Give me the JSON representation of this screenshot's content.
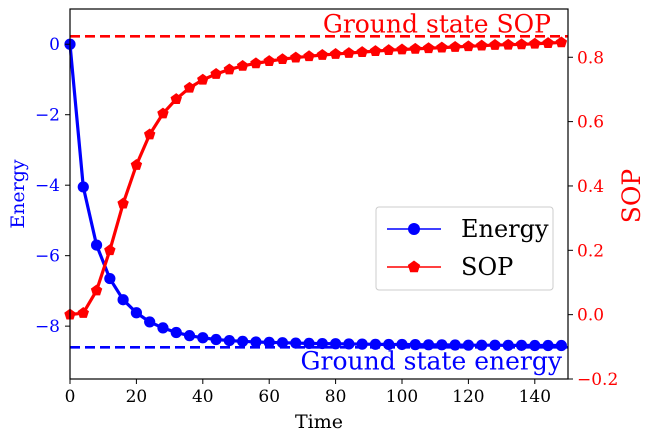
{
  "chart_data": {
    "type": "line",
    "xlabel": "Time",
    "ylabel_left": "Energy",
    "ylabel_right": "SOP",
    "xlim": [
      0,
      150
    ],
    "ylim_left": [
      -9.5,
      1.0
    ],
    "ylim_right": [
      -0.2,
      0.95
    ],
    "x_ticks": [
      "0",
      "20",
      "40",
      "60",
      "80",
      "100",
      "120",
      "140"
    ],
    "left_ticks": [
      "0",
      "−2",
      "−4",
      "−6",
      "−8"
    ],
    "right_ticks": [
      "−0.2",
      "0.0",
      "0.2",
      "0.4",
      "0.6",
      "0.8"
    ],
    "x": [
      0,
      4,
      8,
      12,
      16,
      20,
      24,
      28,
      32,
      36,
      40,
      44,
      48,
      52,
      56,
      60,
      64,
      68,
      72,
      76,
      80,
      84,
      88,
      92,
      96,
      100,
      104,
      108,
      112,
      116,
      120,
      124,
      128,
      132,
      136,
      140,
      144,
      148
    ],
    "series": [
      {
        "name": "Energy",
        "axis": "left",
        "color": "#0000ff",
        "marker": "circle",
        "values": [
          0.0,
          -4.05,
          -5.7,
          -6.65,
          -7.25,
          -7.62,
          -7.88,
          -8.05,
          -8.18,
          -8.27,
          -8.33,
          -8.38,
          -8.41,
          -8.43,
          -8.45,
          -8.46,
          -8.47,
          -8.48,
          -8.49,
          -8.495,
          -8.5,
          -8.505,
          -8.51,
          -8.515,
          -8.52,
          -8.52,
          -8.525,
          -8.53,
          -8.53,
          -8.535,
          -8.54,
          -8.54,
          -8.54,
          -8.545,
          -8.545,
          -8.55,
          -8.55,
          -8.55
        ]
      },
      {
        "name": "SOP",
        "axis": "right",
        "color": "#ff0000",
        "marker": "pentagon",
        "values": [
          0.0,
          0.005,
          0.075,
          0.2,
          0.345,
          0.465,
          0.56,
          0.625,
          0.67,
          0.705,
          0.73,
          0.748,
          0.762,
          0.773,
          0.781,
          0.788,
          0.794,
          0.799,
          0.803,
          0.807,
          0.81,
          0.813,
          0.816,
          0.819,
          0.822,
          0.824,
          0.826,
          0.828,
          0.83,
          0.832,
          0.834,
          0.836,
          0.838,
          0.839,
          0.84,
          0.842,
          0.844,
          0.846
        ]
      }
    ],
    "reference_lines": [
      {
        "label": "Ground state SOP",
        "axis": "right",
        "value": 0.865,
        "color": "#ff0000",
        "style": "dashed"
      },
      {
        "label": "Ground state energy",
        "axis": "left",
        "value": -8.6,
        "color": "#0000ff",
        "style": "dashed"
      }
    ],
    "legend": {
      "placement": "center-right",
      "entries": [
        "Energy",
        "SOP"
      ]
    },
    "grid": false
  }
}
